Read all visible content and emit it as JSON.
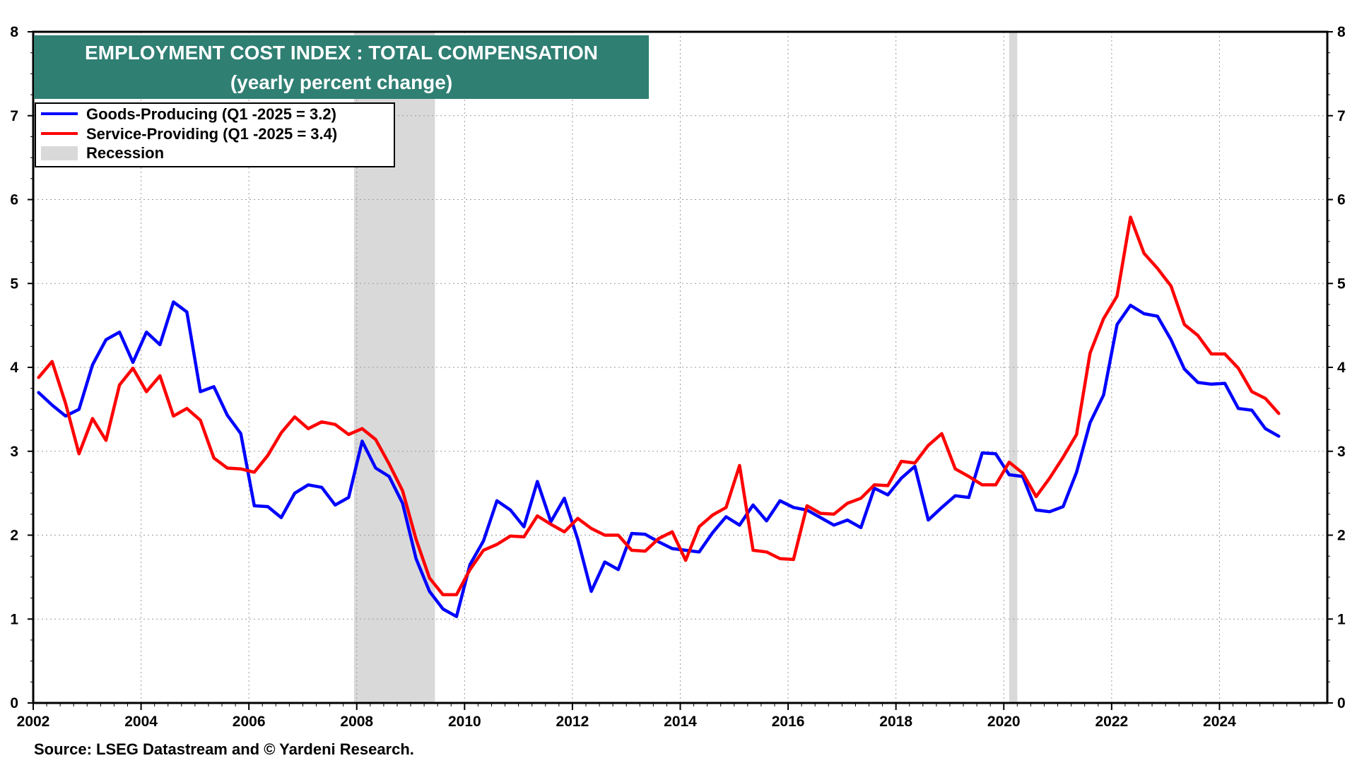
{
  "chart_data": {
    "type": "line",
    "title": "EMPLOYMENT COST INDEX : TOTAL COMPENSATION",
    "subtitle": "(yearly percent change)",
    "source": "Source: LSEG Datastream and © Yardeni Research.",
    "xlim": [
      2002,
      2026.0
    ],
    "ylim": [
      0,
      8
    ],
    "y_ticks": [
      0,
      1,
      2,
      3,
      4,
      5,
      6,
      7,
      8
    ],
    "y_tick_labels": [
      "0",
      "1",
      "2",
      "3",
      "4",
      "5",
      "6",
      "7",
      "8"
    ],
    "x_ticks": [
      2002,
      2004,
      2006,
      2008,
      2010,
      2012,
      2014,
      2016,
      2018,
      2020,
      2022,
      2024
    ],
    "x_tick_labels": [
      "2002",
      "2004",
      "2006",
      "2008",
      "2010",
      "2012",
      "2014",
      "2016",
      "2018",
      "2020",
      "2022",
      "2024"
    ],
    "grid": true,
    "legend_position": "top-left",
    "legend": {
      "goods": "Goods-Producing (Q1 -2025 = 3.2)",
      "services": "Service-Providing  (Q1 -2025 = 3.4)",
      "recession": "Recession"
    },
    "recessions": [
      {
        "start": 2007.95,
        "end": 2009.45
      },
      {
        "start": 2020.1,
        "end": 2020.25
      }
    ],
    "x": [
      2002.1,
      2002.35,
      2002.6,
      2002.85,
      2003.1,
      2003.35,
      2003.6,
      2003.85,
      2004.1,
      2004.35,
      2004.6,
      2004.85,
      2005.1,
      2005.35,
      2005.6,
      2005.85,
      2006.1,
      2006.35,
      2006.6,
      2006.85,
      2007.1,
      2007.35,
      2007.6,
      2007.85,
      2008.1,
      2008.35,
      2008.6,
      2008.85,
      2009.1,
      2009.35,
      2009.6,
      2009.85,
      2010.1,
      2010.35,
      2010.6,
      2010.85,
      2011.1,
      2011.35,
      2011.6,
      2011.85,
      2012.1,
      2012.35,
      2012.6,
      2012.85,
      2013.1,
      2013.35,
      2013.6,
      2013.85,
      2014.1,
      2014.35,
      2014.6,
      2014.85,
      2015.1,
      2015.35,
      2015.6,
      2015.85,
      2016.1,
      2016.35,
      2016.6,
      2016.85,
      2017.1,
      2017.35,
      2017.6,
      2017.85,
      2018.1,
      2018.35,
      2018.6,
      2018.85,
      2019.1,
      2019.35,
      2019.6,
      2019.85,
      2020.1,
      2020.35,
      2020.6,
      2020.85,
      2021.1,
      2021.35,
      2021.6,
      2021.85,
      2022.1,
      2022.35,
      2022.6,
      2022.85,
      2023.1,
      2023.35,
      2023.6,
      2023.85,
      2024.1,
      2024.35,
      2024.6,
      2024.85,
      2025.1
    ],
    "series": [
      {
        "name": "Goods-Producing",
        "color": "#0000ff",
        "values": [
          3.7,
          3.55,
          3.42,
          3.5,
          4.03,
          4.33,
          4.42,
          4.06,
          4.42,
          4.27,
          4.78,
          4.66,
          3.71,
          3.77,
          3.43,
          3.21,
          2.35,
          2.34,
          2.21,
          2.5,
          2.6,
          2.57,
          2.36,
          2.45,
          3.12,
          2.8,
          2.7,
          2.38,
          1.72,
          1.33,
          1.12,
          1.03,
          1.65,
          1.93,
          2.41,
          2.3,
          2.1,
          2.64,
          2.16,
          2.44,
          1.95,
          1.33,
          1.68,
          1.59,
          2.02,
          2.01,
          1.92,
          1.84,
          1.82,
          1.8,
          2.03,
          2.22,
          2.12,
          2.36,
          2.17,
          2.41,
          2.33,
          2.3,
          2.21,
          2.12,
          2.18,
          2.09,
          2.56,
          2.48,
          2.68,
          2.82,
          2.18,
          2.33,
          2.47,
          2.45,
          2.98,
          2.97,
          2.72,
          2.7,
          2.3,
          2.28,
          2.34,
          2.75,
          3.34,
          3.67,
          4.51,
          4.74,
          4.64,
          4.61,
          4.33,
          3.98,
          3.82,
          3.8,
          3.81,
          3.51,
          3.49,
          3.27,
          3.18
        ]
      },
      {
        "name": "Service-Providing",
        "color": "#ff0000",
        "values": [
          3.88,
          4.07,
          3.57,
          2.97,
          3.39,
          3.13,
          3.79,
          3.99,
          3.71,
          3.9,
          3.42,
          3.51,
          3.37,
          2.92,
          2.8,
          2.79,
          2.75,
          2.95,
          3.22,
          3.41,
          3.27,
          3.35,
          3.32,
          3.2,
          3.27,
          3.14,
          2.85,
          2.53,
          1.95,
          1.49,
          1.29,
          1.29,
          1.59,
          1.82,
          1.89,
          1.99,
          1.98,
          2.23,
          2.13,
          2.04,
          2.2,
          2.08,
          2.0,
          2.0,
          1.82,
          1.81,
          1.96,
          2.04,
          1.7,
          2.1,
          2.24,
          2.33,
          2.83,
          1.82,
          1.8,
          1.72,
          1.71,
          2.35,
          2.26,
          2.25,
          2.38,
          2.44,
          2.6,
          2.59,
          2.88,
          2.86,
          3.07,
          3.21,
          2.79,
          2.7,
          2.6,
          2.6,
          2.87,
          2.74,
          2.46,
          2.68,
          2.93,
          3.2,
          4.17,
          4.58,
          4.85,
          5.79,
          5.36,
          5.18,
          4.97,
          4.51,
          4.38,
          4.16,
          4.16,
          3.99,
          3.71,
          3.63,
          3.45
        ]
      }
    ]
  }
}
